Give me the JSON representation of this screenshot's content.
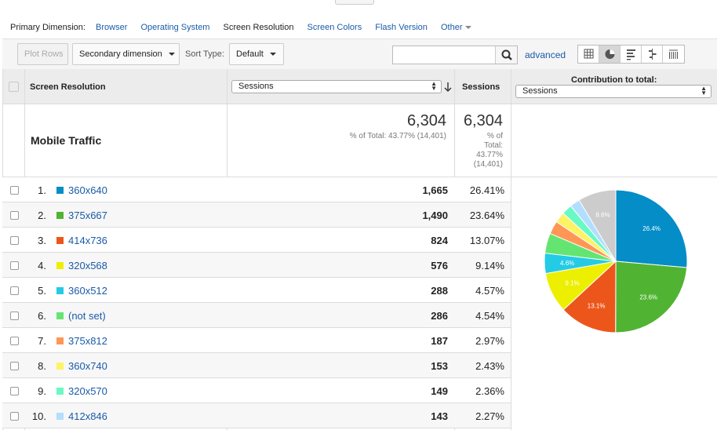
{
  "primary_dimension": {
    "label": "Primary Dimension:",
    "links": [
      "Browser",
      "Operating System",
      "Screen Resolution",
      "Screen Colors",
      "Flash Version",
      "Other"
    ],
    "active": "Screen Resolution"
  },
  "toolbar": {
    "plot_rows": "Plot Rows",
    "secondary_dimension": "Secondary dimension",
    "sort_type_label": "Sort Type:",
    "sort_type_value": "Default",
    "search_value": "",
    "advanced": "advanced",
    "view_icons": [
      "data-table-icon",
      "pie-chart-icon",
      "performance-icon",
      "comparison-icon",
      "term-cloud-icon"
    ],
    "active_view": "pie-chart-icon"
  },
  "table": {
    "dimension_header": "Screen Resolution",
    "metric_select": "Sessions",
    "sessions_header": "Sessions",
    "contribution_header": "Contribution to total:",
    "contribution_select": "Sessions",
    "segment": "Mobile Traffic",
    "summary": {
      "total_main": "6,304",
      "total_main_sub": "% of Total: 43.77% (14,401)",
      "total_col": "6,304",
      "total_col_sub1": "% of",
      "total_col_sub2": "Total:",
      "total_col_sub3": "43.77%",
      "total_col_sub4": "(14,401)"
    },
    "rows": [
      {
        "rank": "1.",
        "name": "360x640",
        "sessions": "1,665",
        "pct": "26.41%",
        "color": "#058dc7"
      },
      {
        "rank": "2.",
        "name": "375x667",
        "sessions": "1,490",
        "pct": "23.64%",
        "color": "#50b432"
      },
      {
        "rank": "3.",
        "name": "414x736",
        "sessions": "824",
        "pct": "13.07%",
        "color": "#ed561b"
      },
      {
        "rank": "4.",
        "name": "320x568",
        "sessions": "576",
        "pct": "9.14%",
        "color": "#edef00"
      },
      {
        "rank": "5.",
        "name": "360x512",
        "sessions": "288",
        "pct": "4.57%",
        "color": "#24cbe5"
      },
      {
        "rank": "6.",
        "name": "(not set)",
        "sessions": "286",
        "pct": "4.54%",
        "color": "#64e572"
      },
      {
        "rank": "7.",
        "name": "375x812",
        "sessions": "187",
        "pct": "2.97%",
        "color": "#ff9655"
      },
      {
        "rank": "8.",
        "name": "360x740",
        "sessions": "153",
        "pct": "2.43%",
        "color": "#fff263"
      },
      {
        "rank": "9.",
        "name": "320x570",
        "sessions": "149",
        "pct": "2.36%",
        "color": "#6af9c4"
      },
      {
        "rank": "10.",
        "name": "412x846",
        "sessions": "143",
        "pct": "2.27%",
        "color": "#b2deff"
      }
    ]
  },
  "chart_data": {
    "type": "pie",
    "slices": [
      {
        "label": "360x640",
        "value": 26.41,
        "color": "#058dc7",
        "shown_label": "26.4%"
      },
      {
        "label": "375x667",
        "value": 23.64,
        "color": "#50b432",
        "shown_label": "23.6%"
      },
      {
        "label": "414x736",
        "value": 13.07,
        "color": "#ed561b",
        "shown_label": "13.1%"
      },
      {
        "label": "320x568",
        "value": 9.14,
        "color": "#edef00",
        "shown_label": "9.1%"
      },
      {
        "label": "360x512",
        "value": 4.57,
        "color": "#24cbe5",
        "shown_label": "4.6%"
      },
      {
        "label": "(not set)",
        "value": 4.54,
        "color": "#64e572",
        "shown_label": ""
      },
      {
        "label": "375x812",
        "value": 2.97,
        "color": "#ff9655",
        "shown_label": ""
      },
      {
        "label": "360x740",
        "value": 2.43,
        "color": "#fff263",
        "shown_label": ""
      },
      {
        "label": "320x570",
        "value": 2.36,
        "color": "#6af9c4",
        "shown_label": ""
      },
      {
        "label": "412x846",
        "value": 2.27,
        "color": "#b2deff",
        "shown_label": ""
      },
      {
        "label": "Other",
        "value": 8.6,
        "color": "#cccccc",
        "shown_label": "8.6%"
      }
    ]
  }
}
